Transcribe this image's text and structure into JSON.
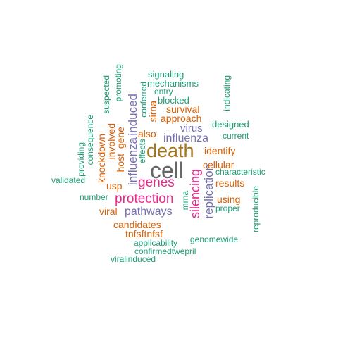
{
  "colors": {
    "green": "#1b9e77",
    "orange": "#d95f02",
    "purple": "#7570b3",
    "magenta": "#e7298a",
    "olive": "#a6761d",
    "gray": "#666666"
  },
  "words": [
    {
      "text": "cell",
      "color": "gray"
    },
    {
      "text": "death",
      "color": "olive"
    },
    {
      "text": "silencing",
      "color": "magenta"
    },
    {
      "text": "protection",
      "color": "magenta"
    },
    {
      "text": "genes",
      "color": "magenta"
    },
    {
      "text": "influenza",
      "color": "purple"
    },
    {
      "text": "influenza",
      "color": "purple"
    },
    {
      "text": "replication",
      "color": "purple"
    },
    {
      "text": "pathways",
      "color": "purple"
    },
    {
      "text": "virus",
      "color": "purple"
    },
    {
      "text": "induced",
      "color": "purple"
    },
    {
      "text": "survival",
      "color": "orange"
    },
    {
      "text": "approach",
      "color": "orange"
    },
    {
      "text": "identify",
      "color": "orange"
    },
    {
      "text": "cellular",
      "color": "orange"
    },
    {
      "text": "results",
      "color": "orange"
    },
    {
      "text": "using",
      "color": "orange"
    },
    {
      "text": "candidates",
      "color": "orange"
    },
    {
      "text": "tnfsftnfsf",
      "color": "orange"
    },
    {
      "text": "viral",
      "color": "orange"
    },
    {
      "text": "usp",
      "color": "orange"
    },
    {
      "text": "also",
      "color": "orange"
    },
    {
      "text": "sirna",
      "color": "orange"
    },
    {
      "text": "host",
      "color": "orange"
    },
    {
      "text": "gene",
      "color": "orange"
    },
    {
      "text": "involved",
      "color": "orange"
    },
    {
      "text": "knockdown",
      "color": "orange"
    },
    {
      "text": "signaling",
      "color": "green"
    },
    {
      "text": "mechanisms",
      "color": "green"
    },
    {
      "text": "entry",
      "color": "green"
    },
    {
      "text": "blocked",
      "color": "green"
    },
    {
      "text": "designed",
      "color": "green"
    },
    {
      "text": "current",
      "color": "green"
    },
    {
      "text": "characteristic",
      "color": "green"
    },
    {
      "text": "proper",
      "color": "green"
    },
    {
      "text": "number",
      "color": "green"
    },
    {
      "text": "validated",
      "color": "green"
    },
    {
      "text": "genomewide",
      "color": "green"
    },
    {
      "text": "applicability",
      "color": "green"
    },
    {
      "text": "confirmedtwepril",
      "color": "green"
    },
    {
      "text": "viralinduced",
      "color": "green"
    },
    {
      "text": "suspected",
      "color": "green"
    },
    {
      "text": "promoting",
      "color": "green"
    },
    {
      "text": "conferred",
      "color": "green"
    },
    {
      "text": "effects",
      "color": "green"
    },
    {
      "text": "providing",
      "color": "green"
    },
    {
      "text": "consequence",
      "color": "green"
    },
    {
      "text": "indicating",
      "color": "green"
    },
    {
      "text": "reproducible",
      "color": "green"
    },
    {
      "text": "mrna",
      "color": "green"
    }
  ]
}
